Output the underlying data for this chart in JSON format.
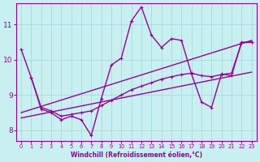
{
  "bg_color": "#c8f0f0",
  "line_color": "#990099",
  "grid_color": "#aadddd",
  "xlim": [
    -0.5,
    23.5
  ],
  "ylim": [
    7.7,
    11.6
  ],
  "yticks": [
    8,
    9,
    10,
    11
  ],
  "xticks": [
    0,
    1,
    2,
    3,
    4,
    5,
    6,
    7,
    8,
    9,
    10,
    11,
    12,
    13,
    14,
    15,
    16,
    17,
    18,
    19,
    20,
    21,
    22,
    23
  ],
  "xlabel": "Windchill (Refroidissement éolien,°C)",
  "line1_x": [
    0,
    1,
    2,
    3,
    4,
    5,
    6,
    7,
    8,
    9,
    10,
    11,
    12,
    13,
    14,
    15,
    16,
    17,
    18,
    19,
    20,
    21,
    22,
    23
  ],
  "line1_y": [
    10.3,
    9.5,
    8.6,
    8.5,
    8.3,
    8.4,
    8.3,
    7.85,
    8.9,
    9.85,
    10.05,
    11.1,
    11.5,
    10.7,
    10.35,
    10.6,
    10.55,
    9.6,
    8.8,
    8.65,
    9.6,
    9.55,
    10.5,
    10.5
  ],
  "line2_x": [
    1,
    2,
    3,
    4,
    5,
    6,
    7,
    8,
    9,
    10,
    11,
    12,
    13,
    14,
    15,
    16,
    17,
    18,
    19,
    20,
    21,
    22,
    23
  ],
  "line2_y": [
    9.5,
    8.65,
    8.55,
    8.4,
    8.45,
    8.5,
    8.55,
    8.7,
    8.85,
    9.0,
    9.15,
    9.25,
    9.35,
    9.45,
    9.52,
    9.58,
    9.62,
    9.55,
    9.52,
    9.58,
    9.62,
    10.48,
    10.5
  ],
  "trend1_x": [
    0,
    23
  ],
  "trend1_y": [
    8.35,
    9.65
  ],
  "trend2_x": [
    0,
    23
  ],
  "trend2_y": [
    8.5,
    10.55
  ]
}
